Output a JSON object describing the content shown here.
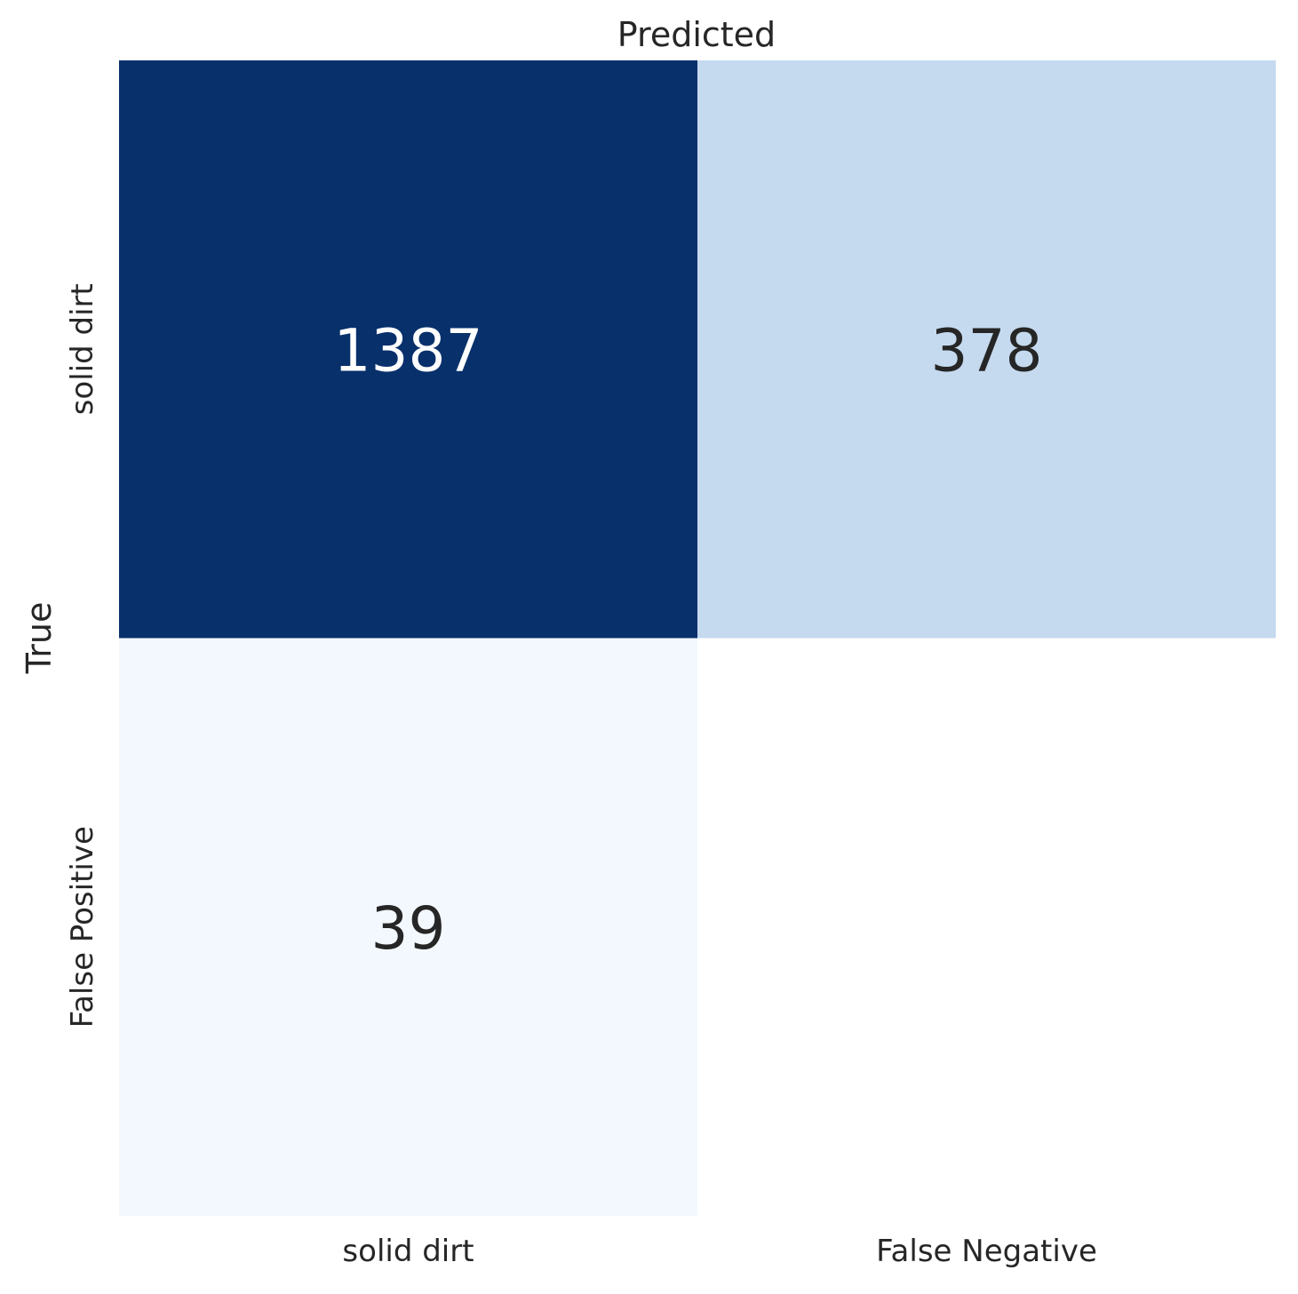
{
  "chart_data": {
    "type": "heatmap",
    "title": "Predicted",
    "xlabel": "",
    "ylabel": "True",
    "x_categories": [
      "solid dirt",
      "False Negative"
    ],
    "y_categories": [
      "solid dirt",
      "False Positive"
    ],
    "values": [
      [
        1387,
        378
      ],
      [
        39,
        null
      ]
    ],
    "colormap": "Blues",
    "value_range": [
      0,
      1387
    ],
    "grid": false,
    "legend": "none",
    "colors": {
      "high": "#08306b",
      "low": "#f7fbff",
      "text_dark": "#262626",
      "text_light": "#ffffff",
      "empty": "#ffffff"
    }
  }
}
